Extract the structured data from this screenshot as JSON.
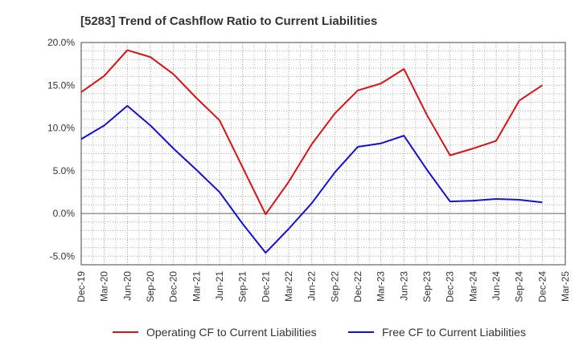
{
  "chart_data": {
    "type": "line",
    "title": "[5283]  Trend of Cashflow Ratio to Current Liabilities",
    "xlabel": "",
    "ylabel": "",
    "ylim": [
      -6,
      20
    ],
    "y_ticks": [
      20,
      15,
      10,
      5,
      0,
      -5
    ],
    "y_tick_labels": [
      "20.0%",
      "15.0%",
      "10.0%",
      "5.0%",
      "0.0%",
      "-5.0%"
    ],
    "categories": [
      "Dec-19",
      "Mar-20",
      "Jun-20",
      "Sep-20",
      "Dec-20",
      "Mar-21",
      "Jun-21",
      "Sep-21",
      "Dec-21",
      "Mar-22",
      "Jun-22",
      "Sep-22",
      "Dec-22",
      "Mar-23",
      "Jun-23",
      "Sep-23",
      "Dec-23",
      "Mar-24",
      "Jun-24",
      "Sep-24",
      "Dec-24",
      "Mar-25"
    ],
    "grid": true,
    "legend_position": "bottom",
    "series": [
      {
        "name": "Operating CF to Current Liabilities",
        "color": "#dd1111",
        "values": [
          14.2,
          16.1,
          19.1,
          18.3,
          16.3,
          13.5,
          10.9,
          5.4,
          -0.1,
          3.7,
          8.1,
          11.7,
          14.4,
          15.2,
          16.9,
          11.5,
          6.8,
          7.6,
          8.5,
          13.2,
          15.0,
          null
        ]
      },
      {
        "name": "Free CF to Current Liabilities",
        "color": "#1111dd",
        "values": [
          8.7,
          10.3,
          12.6,
          10.3,
          7.6,
          5.1,
          2.5,
          -1.2,
          -4.6,
          -1.8,
          1.2,
          4.8,
          7.8,
          8.2,
          9.1,
          5.1,
          1.4,
          1.5,
          1.7,
          1.6,
          1.3,
          null
        ]
      }
    ]
  }
}
